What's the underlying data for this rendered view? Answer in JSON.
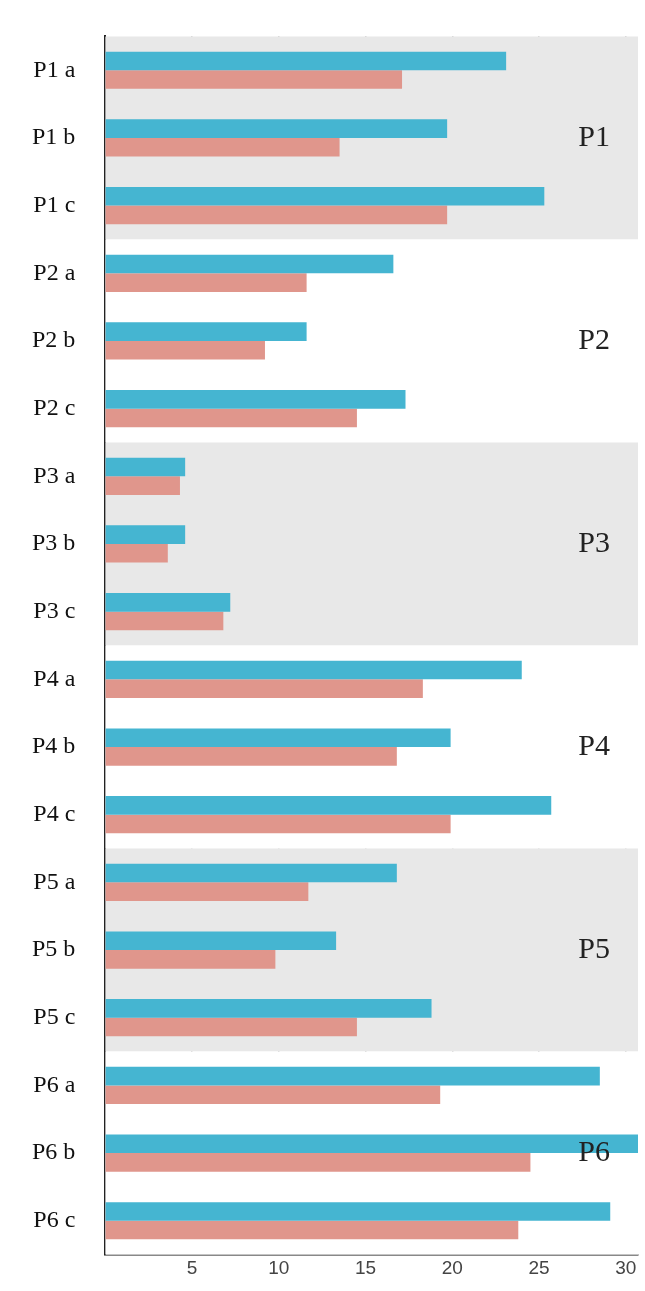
{
  "chart_data": {
    "type": "bar",
    "orientation": "horizontal",
    "categories": [
      "P1 a",
      "P1 b",
      "P1 c",
      "P2 a",
      "P2 b",
      "P2 c",
      "P3 a",
      "P3 b",
      "P3 c",
      "P4 a",
      "P4 b",
      "P4 c",
      "P5 a",
      "P5 b",
      "P5 c",
      "P6 a",
      "P6 b",
      "P6 c"
    ],
    "series": [
      {
        "color": "#45b5d1",
        "values": [
          23.1,
          19.7,
          25.3,
          16.6,
          11.6,
          17.3,
          4.6,
          4.6,
          7.2,
          24.0,
          19.9,
          25.7,
          16.8,
          13.3,
          18.8,
          28.5,
          30.7,
          29.1
        ]
      },
      {
        "color": "#e0968c",
        "values": [
          17.1,
          13.5,
          19.7,
          11.6,
          9.2,
          14.5,
          4.3,
          3.6,
          6.8,
          18.3,
          16.8,
          19.9,
          11.7,
          9.8,
          14.5,
          19.3,
          24.5,
          23.8
        ]
      }
    ],
    "xlim": [
      0,
      30.7
    ],
    "xticks": [
      5,
      10,
      15,
      20,
      25,
      30
    ],
    "grid": "x",
    "bands": [
      {
        "axis": "y",
        "from": "P1 a",
        "to": "P1 c",
        "label": "P1",
        "color": "#e8e8e8"
      },
      {
        "axis": "y",
        "from": "P2 a",
        "to": "P2 c",
        "label": "P2",
        "color": "#ffffff"
      },
      {
        "axis": "y",
        "from": "P3 a",
        "to": "P3 c",
        "label": "P3",
        "color": "#e8e8e8"
      },
      {
        "axis": "y",
        "from": "P4 a",
        "to": "P4 c",
        "label": "P4",
        "color": "#ffffff"
      },
      {
        "axis": "y",
        "from": "P5 a",
        "to": "P5 c",
        "label": "P5",
        "color": "#e8e8e8"
      },
      {
        "axis": "y",
        "from": "P6 a",
        "to": "P6 c",
        "label": "P6",
        "color": "#ffffff"
      }
    ]
  }
}
